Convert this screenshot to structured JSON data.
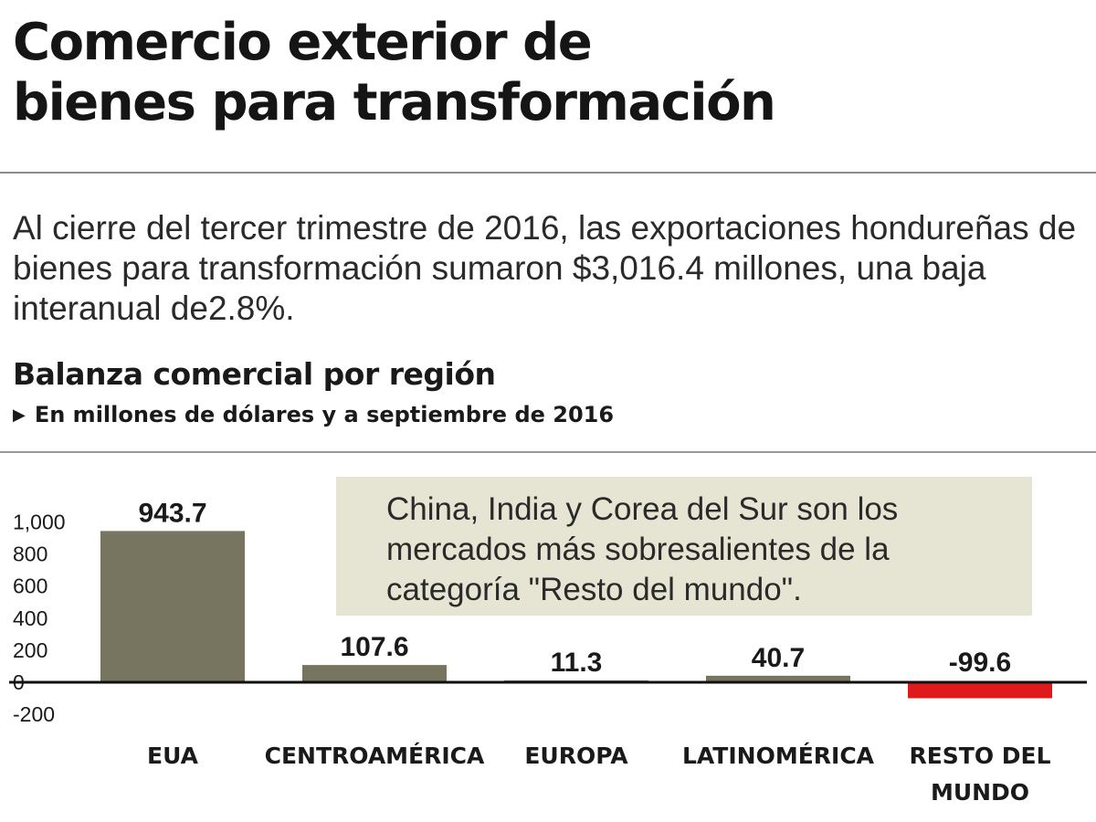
{
  "header": {
    "title_line1": "Comercio exterior de",
    "title_line2": "bienes para transformación",
    "intro": "Al cierre del tercer trimestre de 2016, las exportaciones hondureñas de bienes para transformación sumaron $3,016.4 millones, una baja interanual de2.8%."
  },
  "annotation": {
    "text": "China, India y Corea del Sur son los mercados más sobresalientes de la categoría \"Resto del mundo\"."
  },
  "colors": {
    "positive_bar": "#77745f",
    "negative_bar": "#e01a1a",
    "annotation_bg": "#e6e4d2"
  },
  "chart_data": {
    "type": "bar",
    "title": "Balanza comercial por región",
    "subtitle": "En millones de dólares y a septiembre de 2016",
    "categories": [
      [
        "EUA"
      ],
      [
        "CENTROAMÉRICA"
      ],
      [
        "EUROPA"
      ],
      [
        "LATINOMÉRICA"
      ],
      [
        "RESTO DEL",
        "MUNDO"
      ]
    ],
    "values": [
      943.7,
      107.6,
      11.3,
      40.7,
      -99.6
    ],
    "value_labels": [
      "943.7",
      "107.6",
      "11.3",
      "40.7",
      "-99.6"
    ],
    "yticks": [
      1000,
      800,
      600,
      400,
      200,
      0,
      -200
    ],
    "ytick_labels": [
      "1,000",
      "800",
      "600",
      "400",
      "200",
      "0",
      "-200"
    ],
    "ylim": [
      -200,
      1000
    ],
    "grid": false
  }
}
